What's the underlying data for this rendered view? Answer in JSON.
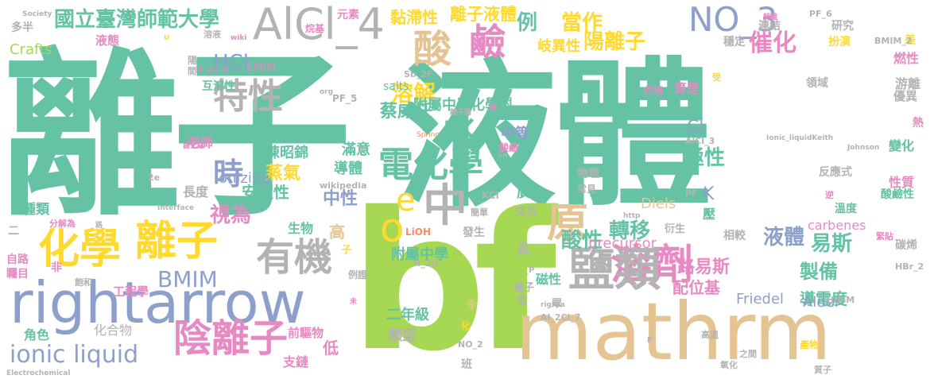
{
  "colors": {
    "green": "#66c2a5",
    "orange": "#fc8d62",
    "blue": "#8da0cb",
    "pink": "#e78ac3",
    "lime": "#a6d854",
    "yellow": "#ffd92f",
    "tan": "#e5c494",
    "gray": "#b3b3b3",
    "background": "#ffffff"
  },
  "words": [
    {
      "text": "離子",
      "color": "green"
    },
    {
      "text": "液體",
      "color": "green"
    },
    {
      "text": "bf",
      "color": "lime"
    },
    {
      "text": "mathrm",
      "color": "tan"
    },
    {
      "text": "rightarrow",
      "color": "blue"
    },
    {
      "text": "化學",
      "color": "yellow"
    },
    {
      "text": "離子",
      "color": "yellow"
    },
    {
      "text": "陰離子",
      "color": "pink"
    },
    {
      "text": "溶劑",
      "color": "pink"
    },
    {
      "text": "電化學",
      "color": "green"
    },
    {
      "text": "鹽類",
      "color": "gray"
    },
    {
      "text": "有機",
      "color": "gray"
    },
    {
      "text": "AlCl_4",
      "color": "gray"
    },
    {
      "text": "NO_3",
      "color": "blue"
    },
    {
      "text": "特性",
      "color": "gray"
    },
    {
      "text": "酸",
      "color": "tan"
    },
    {
      "text": "鹼",
      "color": "pink"
    },
    {
      "text": "水",
      "color": "green"
    },
    {
      "text": "中",
      "color": "gray"
    },
    {
      "text": "o",
      "color": "yellow"
    },
    {
      "text": "e",
      "color": "yellow"
    },
    {
      "text": "原",
      "color": "tan"
    },
    {
      "text": "時",
      "color": "blue"
    },
    {
      "text": "ionic liquid",
      "color": "blue"
    },
    {
      "text": "國立臺灣師範大學",
      "color": "green"
    },
    {
      "text": "溶解",
      "color": "yellow"
    },
    {
      "text": "附屬中學化學科",
      "color": "green"
    },
    {
      "text": "當作",
      "color": "yellow"
    },
    {
      "text": "陽離子",
      "color": "yellow"
    },
    {
      "text": "催化",
      "color": "pink"
    },
    {
      "text": "離子液體",
      "color": "yellow"
    },
    {
      "text": "黏滯性",
      "color": "yellow"
    },
    {
      "text": "岐異性",
      "color": "yellow"
    },
    {
      "text": "例",
      "color": "green"
    },
    {
      "text": "元素",
      "color": "pink"
    },
    {
      "text": "HCl",
      "color": "blue"
    },
    {
      "text": "BMIM",
      "color": "blue"
    },
    {
      "text": "蔡威任",
      "color": "green"
    },
    {
      "text": "Cl",
      "color": "blue"
    },
    {
      "text": "中等",
      "color": "blue"
    },
    {
      "text": "蒸氣",
      "color": "yellow"
    },
    {
      "text": "安定性",
      "color": "green"
    },
    {
      "text": "中性",
      "color": "blue"
    },
    {
      "text": "極性",
      "color": "green"
    },
    {
      "text": "K",
      "color": "blue"
    },
    {
      "text": "視為",
      "color": "pink"
    },
    {
      "text": "轉移",
      "color": "green"
    },
    {
      "text": "酸性",
      "color": "green"
    },
    {
      "text": "液體",
      "color": "blue"
    },
    {
      "text": "易斯",
      "color": "green"
    },
    {
      "text": "路易斯",
      "color": "pink"
    },
    {
      "text": "製備",
      "color": "green"
    },
    {
      "text": "導電度",
      "color": "green"
    },
    {
      "text": "配位基",
      "color": "pink"
    },
    {
      "text": "二年級",
      "color": "green"
    },
    {
      "text": "附屬中學",
      "color": "green"
    },
    {
      "text": "類型",
      "color": "gray"
    },
    {
      "text": "磁性",
      "color": "green"
    },
    {
      "text": "ionizing",
      "color": "blue"
    },
    {
      "text": "陳昭錦",
      "color": "green"
    },
    {
      "text": "滿意",
      "color": "green"
    },
    {
      "text": "導體",
      "color": "green"
    },
    {
      "text": "生物",
      "color": "green"
    },
    {
      "text": "老師",
      "color": "pink"
    },
    {
      "text": "長度",
      "color": "gray"
    },
    {
      "text": "種類",
      "color": "green"
    },
    {
      "text": "角色",
      "color": "green"
    },
    {
      "text": "化合物",
      "color": "gray"
    },
    {
      "text": "工程學",
      "color": "pink"
    },
    {
      "text": "前驅物",
      "color": "pink"
    },
    {
      "text": "支鏈",
      "color": "pink"
    },
    {
      "text": "低",
      "color": "pink"
    },
    {
      "text": "高",
      "color": "tan"
    },
    {
      "text": "Crafts",
      "color": "lime"
    },
    {
      "text": "多半",
      "color": "gray"
    },
    {
      "text": "液態",
      "color": "pink"
    },
    {
      "text": "互溶性",
      "color": "green"
    },
    {
      "text": "EMIM",
      "color": "pink"
    },
    {
      "text": "N_2O_5",
      "color": "pink"
    },
    {
      "text": "salts",
      "color": "green"
    },
    {
      "text": "Friedel",
      "color": "blue"
    },
    {
      "text": "Alder",
      "color": "blue"
    },
    {
      "text": "Diels",
      "color": "tan"
    },
    {
      "text": "precursor",
      "color": "pink"
    },
    {
      "text": "carbenes",
      "color": "pink"
    },
    {
      "text": "燃性",
      "color": "pink"
    },
    {
      "text": "游離",
      "color": "gray"
    },
    {
      "text": "優異",
      "color": "gray"
    },
    {
      "text": "變化",
      "color": "green"
    },
    {
      "text": "性質",
      "color": "pink"
    },
    {
      "text": "溫度",
      "color": "green"
    },
    {
      "text": "酸鹼性",
      "color": "green"
    },
    {
      "text": "碳烯",
      "color": "gray"
    },
    {
      "text": "連結",
      "color": "gray"
    },
    {
      "text": "穩定",
      "color": "gray"
    },
    {
      "text": "領域",
      "color": "gray"
    },
    {
      "text": "扮演",
      "color": "yellow"
    },
    {
      "text": "研究",
      "color": "gray"
    },
    {
      "text": "算是",
      "color": "pink"
    },
    {
      "text": "作用",
      "color": "pink"
    },
    {
      "text": "反應式",
      "color": "gray"
    },
    {
      "text": "物理",
      "color": "gray"
    },
    {
      "text": "常見",
      "color": "gray"
    },
    {
      "text": "廣",
      "color": "green"
    },
    {
      "text": "壓",
      "color": "green"
    },
    {
      "text": "交互",
      "color": "gray"
    },
    {
      "text": "具",
      "color": "gray"
    },
    {
      "text": "發生",
      "color": "gray"
    },
    {
      "text": "電子",
      "color": "gray"
    },
    {
      "text": "陰",
      "color": "gray"
    },
    {
      "text": "眾",
      "color": "gray"
    },
    {
      "text": "令",
      "color": "tan"
    },
    {
      "text": "相較",
      "color": "gray"
    },
    {
      "text": "衍生",
      "color": "gray"
    },
    {
      "text": "熱",
      "color": "pink"
    },
    {
      "text": "差",
      "color": "yellow"
    },
    {
      "text": "酸鹼",
      "color": "pink"
    },
    {
      "text": "KCl",
      "color": "gray"
    },
    {
      "text": "LiOH",
      "color": "orange"
    },
    {
      "text": "H_2O",
      "color": "gray"
    },
    {
      "text": "PF_6",
      "color": "gray"
    },
    {
      "text": "PF_5",
      "color": "gray"
    },
    {
      "text": "PF",
      "color": "gray"
    },
    {
      "text": "AlCl_3",
      "color": "gray"
    },
    {
      "text": "BMIM_2",
      "color": "gray"
    },
    {
      "text": "HMIM",
      "color": "gray"
    },
    {
      "text": "HBr_2",
      "color": "gray"
    },
    {
      "text": "Al_2Cl_7",
      "color": "gray"
    },
    {
      "text": "Sb_2F_",
      "color": "gray"
    },
    {
      "text": "NO_2",
      "color": "gray"
    },
    {
      "text": "2e",
      "color": "gray"
    },
    {
      "text": "wikipedia",
      "color": "gray"
    },
    {
      "text": "Johnson",
      "color": "gray"
    },
    {
      "text": "Spring",
      "color": "orange"
    },
    {
      "text": "Interface",
      "color": "gray"
    },
    {
      "text": "Electrochemical",
      "color": "gray"
    },
    {
      "text": "Society",
      "color": "gray"
    },
    {
      "text": "org",
      "color": "gray"
    },
    {
      "text": "wiki",
      "color": "pink"
    },
    {
      "text": "http",
      "color": "gray"
    },
    {
      "text": "righta",
      "color": "gray"
    },
    {
      "text": "Ionic_liquidKeith",
      "color": "gray"
    },
    {
      "text": "離子團",
      "color": "gray"
    },
    {
      "text": "溶液",
      "color": "gray"
    },
    {
      "text": "鹵化鋁",
      "color": "pink"
    },
    {
      "text": "陽",
      "color": "gray"
    },
    {
      "text": "二",
      "color": "gray"
    },
    {
      "text": "非",
      "color": "pink"
    },
    {
      "text": "飽和",
      "color": "gray"
    },
    {
      "text": "分解為",
      "color": "pink"
    },
    {
      "text": "自路",
      "color": "pink"
    },
    {
      "text": "矚目",
      "color": "pink"
    },
    {
      "text": "例證",
      "color": "gray"
    },
    {
      "text": "簡單",
      "color": "gray"
    },
    {
      "text": "子",
      "color": "yellow"
    },
    {
      "text": "化",
      "color": "yellow"
    },
    {
      "text": "班",
      "color": "gray"
    },
    {
      "text": "氧化",
      "color": "gray"
    },
    {
      "text": "之間",
      "color": "gray"
    },
    {
      "text": "產物",
      "color": "yellow"
    },
    {
      "text": "高溫",
      "color": "gray"
    },
    {
      "text": "質子",
      "color": "gray"
    },
    {
      "text": "緊貼",
      "color": "pink"
    },
    {
      "text": "逆",
      "color": "pink"
    },
    {
      "text": "解離",
      "color": "pink"
    },
    {
      "text": "受",
      "color": "yellow"
    },
    {
      "text": "製",
      "color": "pink"
    },
    {
      "text": "烷基",
      "color": "pink"
    },
    {
      "text": "間",
      "color": "gray"
    },
    {
      "text": "路",
      "color": "gray"
    },
    {
      "text": "未",
      "color": "pink"
    },
    {
      "text": "en",
      "color": "gray"
    },
    {
      "text": "F",
      "color": "gray"
    },
    {
      "text": "_P",
      "color": "gray"
    },
    {
      "text": "U",
      "color": "yellow"
    }
  ]
}
